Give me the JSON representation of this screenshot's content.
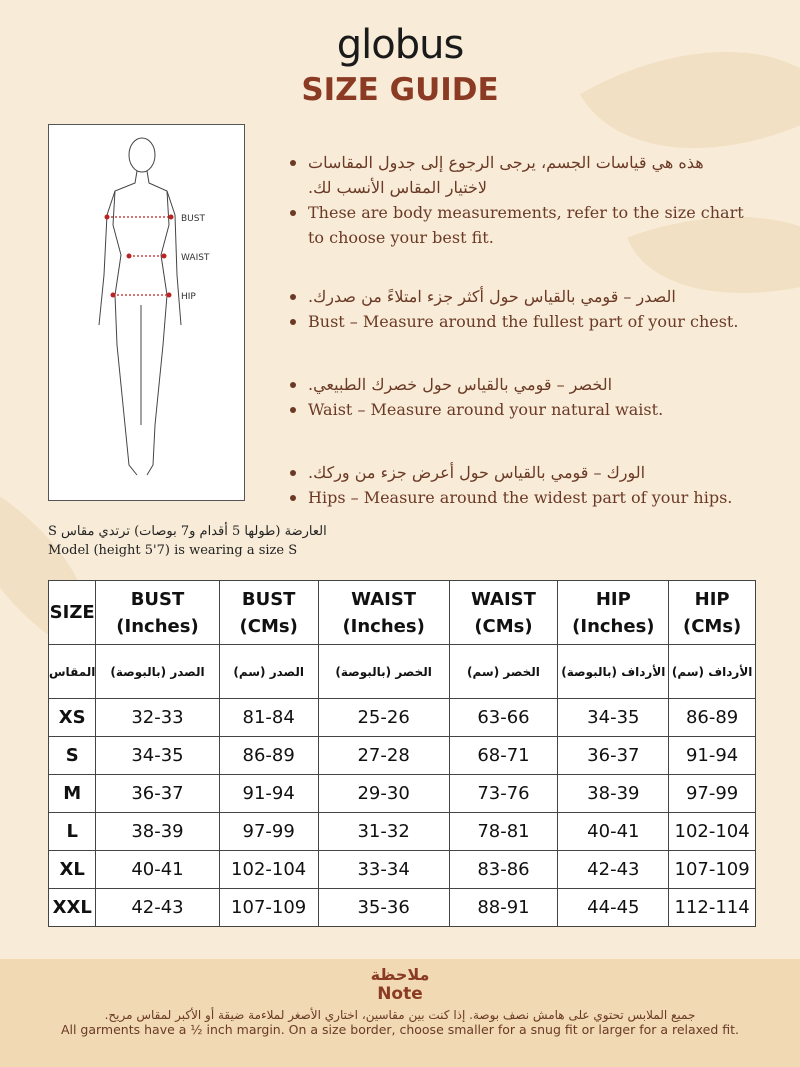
{
  "brand": "globus",
  "title": "SIZE GUIDE",
  "figure": {
    "labels": [
      "BUST",
      "WAIST",
      "HIP"
    ]
  },
  "bullets": [
    {
      "ar": "هذه هي قياسات الجسم، يرجى الرجوع إلى جدول المقاسات لاختيار المقاس الأنسب لك.",
      "en": "These are body measurements, refer to the size chart to choose your best fit."
    },
    {
      "ar": "الصدر – قومي بالقياس حول أكثر جزء امتلاءً من صدرك.",
      "en": "Bust – Measure around the fullest part of your chest."
    },
    {
      "ar": "الخصر – قومي بالقياس حول خصرك الطبيعي.",
      "en": "Waist – Measure around your natural waist."
    },
    {
      "ar": "الورك – قومي بالقياس حول أعرض جزء من وركك.",
      "en": "Hips – Measure around the widest part of your hips."
    }
  ],
  "model": {
    "ar": "العارضة (طولها 5 أقدام و7 بوصات) ترتدي مقاس S",
    "en": "Model (height 5'7) is wearing a size S"
  },
  "table": {
    "headers": [
      "SIZE",
      "BUST (Inches)",
      "BUST (CMs)",
      "WAIST (Inches)",
      "WAIST (CMs)",
      "HIP (Inches)",
      "HIP (CMs)"
    ],
    "headers_ar": [
      "المقاس",
      "الصدر (بالبوصة)",
      "الصدر (سم)",
      "الخصر (بالبوصة)",
      "الخصر (سم)",
      "الأرداف (بالبوصة)",
      "الأرداف (سم)"
    ],
    "rows": [
      [
        "XS",
        "32-33",
        "81-84",
        "25-26",
        "63-66",
        "34-35",
        "86-89"
      ],
      [
        "S",
        "34-35",
        "86-89",
        "27-28",
        "68-71",
        "36-37",
        "91-94"
      ],
      [
        "M",
        "36-37",
        "91-94",
        "29-30",
        "73-76",
        "38-39",
        "97-99"
      ],
      [
        "L",
        "38-39",
        "97-99",
        "31-32",
        "78-81",
        "40-41",
        "102-104"
      ],
      [
        "XL",
        "40-41",
        "102-104",
        "33-34",
        "83-86",
        "42-43",
        "107-109"
      ],
      [
        "XXL",
        "42-43",
        "107-109",
        "35-36",
        "88-91",
        "44-45",
        "112-114"
      ]
    ]
  },
  "note": {
    "title_ar": "ملاحظة",
    "title_en": "Note",
    "text_ar": "جميع الملابس تحتوي على هامش نصف بوصة. إذا كنت بين مقاسين، اختاري الأصغر لملاءمة ضيقة أو الأكبر لمقاس مريح.",
    "text_en": "All garments have a ½ inch margin. On a size border, choose smaller for a snug fit or larger for a relaxed fit."
  }
}
